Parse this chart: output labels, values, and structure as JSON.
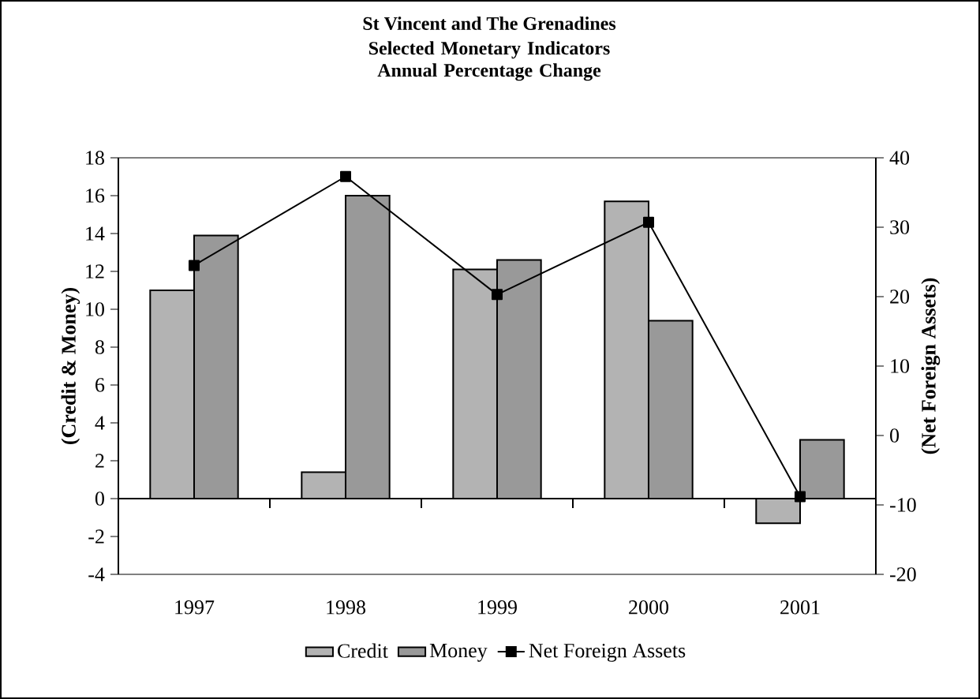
{
  "chart_data": {
    "type": "bar",
    "title": "St Vincent and The Grenadines",
    "subtitle": "Selected Monetary Indicators Annual Percentage Change",
    "ylabel": "(Credit & Money)",
    "y2label": "(Net Foreign Assets)",
    "categories": [
      "1997",
      "1998",
      "1999",
      "2000",
      "2001"
    ],
    "series": [
      {
        "name": "Credit",
        "color": "#b3b3b3",
        "values": [
          11.0,
          1.4,
          12.1,
          15.7,
          -1.3
        ]
      },
      {
        "name": "Money",
        "color": "#999999",
        "values": [
          13.9,
          16.0,
          12.6,
          9.4,
          3.1
        ]
      },
      {
        "name": "Net Foreign Assets",
        "type": "line",
        "axis": "y2",
        "color": "#000000",
        "values": [
          24.5,
          37.3,
          20.3,
          30.7,
          -8.8
        ]
      }
    ],
    "ylim": [
      -4,
      18
    ],
    "yticks": [
      -4,
      -2,
      0,
      2,
      4,
      6,
      8,
      10,
      12,
      14,
      16,
      18
    ],
    "y2lim": [
      -20,
      40
    ],
    "y2ticks": [
      -20,
      -10,
      0,
      10,
      20,
      30,
      40
    ],
    "marker": "square",
    "line_style": "solid",
    "legend": "bottom"
  }
}
